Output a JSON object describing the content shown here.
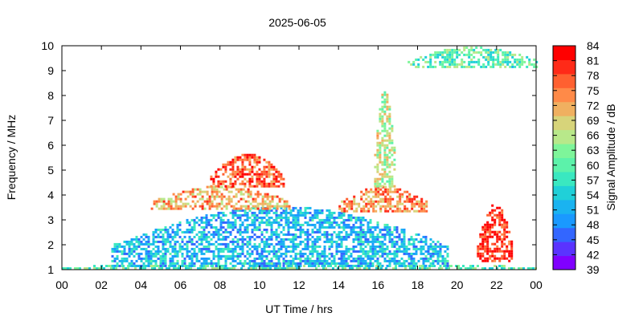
{
  "chart_data": {
    "type": "heatmap",
    "title": "2025-06-05",
    "xlabel": "UT Time / hrs",
    "ylabel": "Frequency / MHz",
    "xlim": [
      0,
      24
    ],
    "ylim": [
      1,
      10
    ],
    "xticks": [
      "00",
      "02",
      "04",
      "06",
      "08",
      "10",
      "12",
      "14",
      "16",
      "18",
      "20",
      "22",
      "00"
    ],
    "yticks": [
      "1",
      "2",
      "3",
      "4",
      "5",
      "6",
      "7",
      "8",
      "9",
      "10"
    ],
    "colorbar": {
      "label": "Signal Amplitude / dB",
      "min": 39,
      "max": 84,
      "ticks": [
        "84",
        "81",
        "78",
        "75",
        "72",
        "69",
        "66",
        "63",
        "60",
        "57",
        "54",
        "51",
        "48",
        "45",
        "42",
        "39"
      ],
      "colors": [
        "#8000ff",
        "#5a33ff",
        "#3366ff",
        "#1a99ff",
        "#1ab3f0",
        "#20d0d8",
        "#3ae8c0",
        "#5cf2aa",
        "#7ef59a",
        "#b8e88a",
        "#d7d47a",
        "#f0b060",
        "#ff8a48",
        "#ff6030",
        "#ff2a18",
        "#ff0000"
      ]
    },
    "grid": false,
    "legend": "colorbar right",
    "features": [
      {
        "t_start": 0.0,
        "t_end": 24.0,
        "f_low": 1.0,
        "f_high": 1.2,
        "level": 60
      },
      {
        "t_start": 2.5,
        "t_end": 19.5,
        "f_low": 1.1,
        "f_high": 3.5,
        "level": 52
      },
      {
        "t_start": 4.5,
        "t_end": 11.5,
        "f_low": 3.4,
        "f_high": 4.3,
        "level": 72
      },
      {
        "t_start": 14.0,
        "t_end": 18.5,
        "f_low": 3.3,
        "f_high": 4.3,
        "level": 74
      },
      {
        "t_start": 7.5,
        "t_end": 11.2,
        "f_low": 4.3,
        "f_high": 5.6,
        "level": 78
      },
      {
        "t_start": 15.8,
        "t_end": 16.8,
        "f_low": 4.3,
        "f_high": 8.2,
        "level": 66
      },
      {
        "t_start": 21.0,
        "t_end": 22.8,
        "f_low": 1.3,
        "f_high": 3.6,
        "level": 81
      },
      {
        "t_start": 17.5,
        "t_end": 24.0,
        "f_low": 9.1,
        "f_high": 9.9,
        "level": 60
      }
    ]
  }
}
